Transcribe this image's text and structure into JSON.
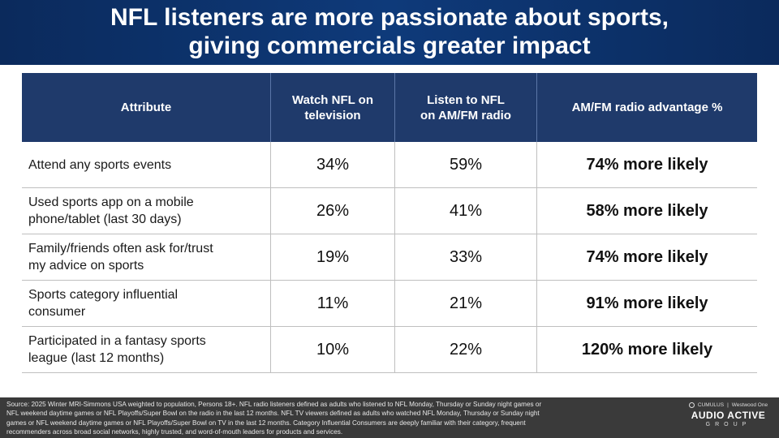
{
  "title": {
    "line1": "NFL listeners are more passionate about sports,",
    "line2": "giving commercials greater impact"
  },
  "table": {
    "headers": {
      "attribute": "Attribute",
      "tv_line1": "Watch NFL on",
      "tv_line2": "television",
      "radio_line1": "Listen to NFL",
      "radio_line2": "on AM/FM radio",
      "advantage": "AM/FM radio advantage %"
    },
    "rows": [
      {
        "attr_line1": "Attend any sports events",
        "attr_line2": "",
        "tv": "34%",
        "radio": "59%",
        "advantage": "74% more likely"
      },
      {
        "attr_line1": "Used sports app on a mobile",
        "attr_line2": "phone/tablet (last 30 days)",
        "tv": "26%",
        "radio": "41%",
        "advantage": "58% more likely"
      },
      {
        "attr_line1": "Family/friends often ask for/trust",
        "attr_line2": "my advice on sports",
        "tv": "19%",
        "radio": "33%",
        "advantage": "74% more likely"
      },
      {
        "attr_line1": "Sports category influential",
        "attr_line2": "consumer",
        "tv": "11%",
        "radio": "21%",
        "advantage": "91% more likely"
      },
      {
        "attr_line1": "Participated in a fantasy sports",
        "attr_line2": "league (last 12 months)",
        "tv": "10%",
        "radio": "22%",
        "advantage": "120% more likely"
      }
    ]
  },
  "footer": {
    "source_line1": "Source:  2025 Winter MRI-Simmons  USA weighted to population,  Persons 18+. NFL radio listeners defined as adults who listened to NFL Monday, Thursday  or Sunday  night games  or",
    "source_line2": "NFL weekend daytime games or NFL Playoffs/Super Bowl on the radio in the last 12 months.  NFL TV viewers defined as adults who watched NFL Monday, Thursday  or Sunday  night",
    "source_line3": "games  or NFL weekend daytime games or NFL Playoffs/Super  Bowl on TV in the last 12 months.  Category Influential Consumers  are deeply familiar with their category, frequent",
    "source_line4": "recommenders  across broad  social networks, highly trusted, and word-of-mouth leaders for products and  services."
  },
  "logo": {
    "top_left": "CUMULUS",
    "top_right": "Westwood One",
    "main": "AUDIO ACTIVE",
    "sub": "GROUP"
  },
  "colors": {
    "title_bg": "#0b2a5c",
    "header_bg": "#1f3a6b",
    "footer_bg": "#3a3a3a"
  }
}
